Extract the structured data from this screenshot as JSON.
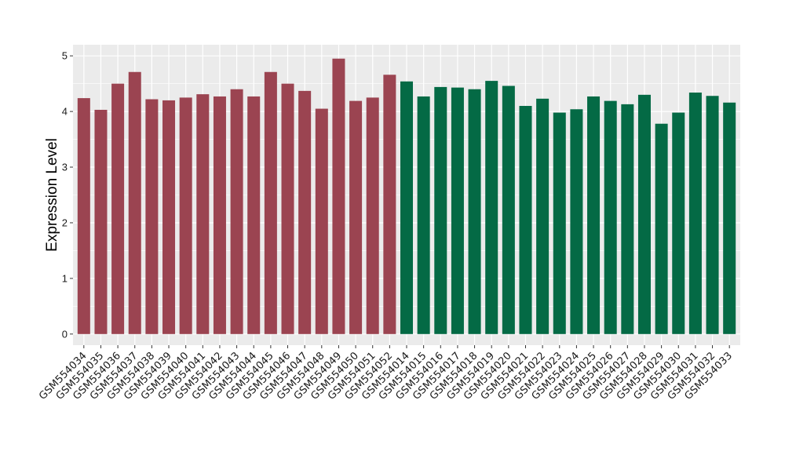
{
  "chart_data": {
    "type": "bar",
    "ylabel": "Expression Level",
    "xlabel": "",
    "ylim": [
      -0.2,
      5.2
    ],
    "yticks": [
      0,
      1,
      2,
      3,
      4,
      5
    ],
    "grid": true,
    "legend": "none",
    "colors": {
      "group_1": "#9b4451",
      "group_2": "#046a45",
      "panel_bg": "#ebebeb",
      "grid": "#ffffff"
    },
    "categories": [
      "GSM554034",
      "GSM554035",
      "GSM554036",
      "GSM554037",
      "GSM554038",
      "GSM554039",
      "GSM554040",
      "GSM554041",
      "GSM554042",
      "GSM554043",
      "GSM554044",
      "GSM554045",
      "GSM554046",
      "GSM554047",
      "GSM554048",
      "GSM554049",
      "GSM554050",
      "GSM554051",
      "GSM554052",
      "GSM554014",
      "GSM554015",
      "GSM554016",
      "GSM554017",
      "GSM554018",
      "GSM554019",
      "GSM554020",
      "GSM554021",
      "GSM554022",
      "GSM554023",
      "GSM554024",
      "GSM554025",
      "GSM554026",
      "GSM554027",
      "GSM554028",
      "GSM554029",
      "GSM554030",
      "GSM554031",
      "GSM554032",
      "GSM554033"
    ],
    "values": [
      4.24,
      4.03,
      4.5,
      4.71,
      4.22,
      4.2,
      4.25,
      4.31,
      4.27,
      4.4,
      4.27,
      4.71,
      4.5,
      4.37,
      4.05,
      4.95,
      4.19,
      4.25,
      4.66,
      4.54,
      4.27,
      4.44,
      4.43,
      4.4,
      4.55,
      4.46,
      4.1,
      4.23,
      3.98,
      4.04,
      4.27,
      4.19,
      4.13,
      4.3,
      3.78,
      3.98,
      4.34,
      4.28,
      4.16
    ],
    "groups": [
      1,
      1,
      1,
      1,
      1,
      1,
      1,
      1,
      1,
      1,
      1,
      1,
      1,
      1,
      1,
      1,
      1,
      1,
      1,
      2,
      2,
      2,
      2,
      2,
      2,
      2,
      2,
      2,
      2,
      2,
      2,
      2,
      2,
      2,
      2,
      2,
      2,
      2,
      2
    ]
  }
}
